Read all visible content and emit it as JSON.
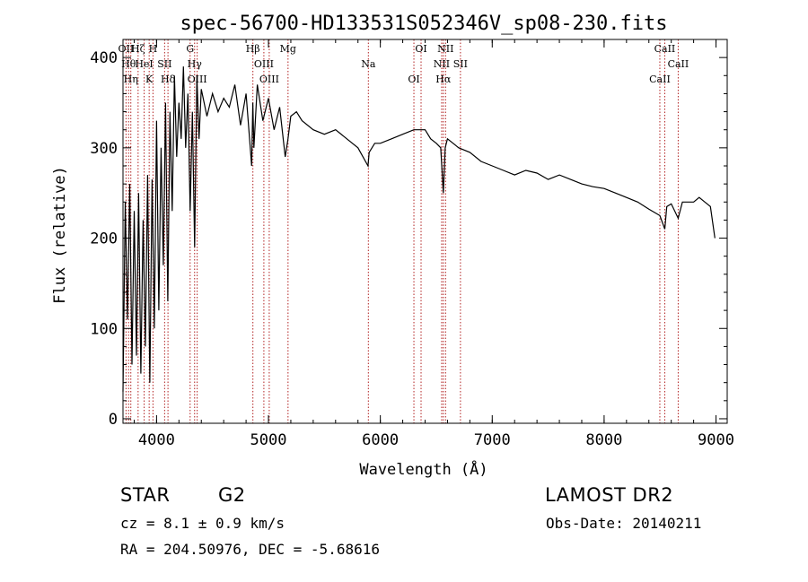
{
  "chart_data": {
    "type": "line",
    "title": "spec-56700-HD133531S052346V_sp08-230.fits",
    "xlabel": "Wavelength (Å)",
    "ylabel": "Flux (relative)",
    "xlim": [
      3700,
      9100
    ],
    "ylim": [
      -5,
      420
    ],
    "x_ticks": [
      4000,
      5000,
      6000,
      7000,
      8000,
      9000
    ],
    "y_ticks": [
      0,
      100,
      200,
      300,
      400
    ],
    "x_tick_labels": [
      "4000",
      "5000",
      "6000",
      "7000",
      "8000",
      "9000"
    ],
    "y_tick_labels": [
      "0",
      "100",
      "200",
      "300",
      "400"
    ],
    "grid": false,
    "line_color": "#000000",
    "marker_color": "#b22222",
    "series": [
      {
        "x": [
          3700,
          3720,
          3740,
          3760,
          3780,
          3800,
          3820,
          3840,
          3860,
          3880,
          3900,
          3920,
          3940,
          3960,
          3980,
          4000,
          4020,
          4040,
          4060,
          4080,
          4100,
          4120,
          4140,
          4160,
          4180,
          4200,
          4220,
          4240,
          4260,
          4280,
          4300,
          4320,
          4340,
          4360,
          4380,
          4400,
          4450,
          4500,
          4550,
          4600,
          4650,
          4700,
          4750,
          4800,
          4850,
          4860,
          4870,
          4900,
          4950,
          5000,
          5050,
          5100,
          5150,
          5175,
          5200,
          5250,
          5300,
          5400,
          5500,
          5600,
          5700,
          5800,
          5890,
          5900,
          5950,
          6000,
          6100,
          6200,
          6300,
          6350,
          6400,
          6450,
          6500,
          6540,
          6563,
          6580,
          6600,
          6650,
          6700,
          6800,
          6900,
          7000,
          7100,
          7200,
          7300,
          7400,
          7500,
          7600,
          7700,
          7800,
          7900,
          8000,
          8100,
          8200,
          8300,
          8400,
          8498,
          8542,
          8560,
          8600,
          8662,
          8700,
          8800,
          8850,
          8900,
          8950,
          8990
        ],
        "y": [
          30,
          240,
          110,
          260,
          60,
          230,
          70,
          250,
          50,
          220,
          80,
          270,
          40,
          265,
          100,
          330,
          120,
          300,
          170,
          350,
          130,
          340,
          230,
          380,
          290,
          350,
          310,
          390,
          300,
          360,
          230,
          340,
          190,
          380,
          310,
          365,
          335,
          360,
          340,
          355,
          345,
          370,
          325,
          360,
          280,
          350,
          300,
          370,
          330,
          355,
          320,
          345,
          290,
          310,
          335,
          340,
          330,
          320,
          315,
          320,
          310,
          300,
          280,
          295,
          305,
          305,
          310,
          315,
          320,
          320,
          320,
          310,
          305,
          300,
          250,
          300,
          310,
          305,
          300,
          295,
          285,
          280,
          275,
          270,
          275,
          272,
          265,
          270,
          265,
          260,
          257,
          255,
          250,
          245,
          240,
          232,
          225,
          210,
          235,
          238,
          222,
          240,
          240,
          245,
          240,
          235,
          200
        ]
      }
    ],
    "line_markers": [
      {
        "x": 3727,
        "label": "OII"
      },
      {
        "x": 3750,
        "label": "Hθ"
      },
      {
        "x": 3770,
        "label": "Hη"
      },
      {
        "x": 3835,
        "label": "Hζ"
      },
      {
        "x": 3889,
        "label": "HeI"
      },
      {
        "x": 3934,
        "label": "K"
      },
      {
        "x": 3968,
        "label": "H"
      },
      {
        "x": 4072,
        "label": "SII"
      },
      {
        "x": 4102,
        "label": "Hδ"
      },
      {
        "x": 4300,
        "label": "G"
      },
      {
        "x": 4340,
        "label": "Hγ"
      },
      {
        "x": 4363,
        "label": "OIII"
      },
      {
        "x": 4861,
        "label": "Hβ"
      },
      {
        "x": 4959,
        "label": "OIII"
      },
      {
        "x": 5007,
        "label": "OIII"
      },
      {
        "x": 5175,
        "label": "Mg"
      },
      {
        "x": 5893,
        "label": "Na"
      },
      {
        "x": 6300,
        "label": "OI"
      },
      {
        "x": 6364,
        "label": "OI"
      },
      {
        "x": 6548,
        "label": "NII"
      },
      {
        "x": 6563,
        "label": "Hα"
      },
      {
        "x": 6583,
        "label": "NII"
      },
      {
        "x": 6716,
        "label": "SII"
      },
      {
        "x": 8498,
        "label": "CaII"
      },
      {
        "x": 8542,
        "label": "CaII"
      },
      {
        "x": 8662,
        "label": "CaII"
      }
    ]
  },
  "footer": {
    "object_class": "STAR",
    "subclass": "G2",
    "redshift": "cz = 8.1 ± 0.9 km/s",
    "coords": "RA = 204.50976, DEC =  -5.68616",
    "survey": "LAMOST DR2",
    "obs_date": "Obs-Date: 20140211"
  }
}
